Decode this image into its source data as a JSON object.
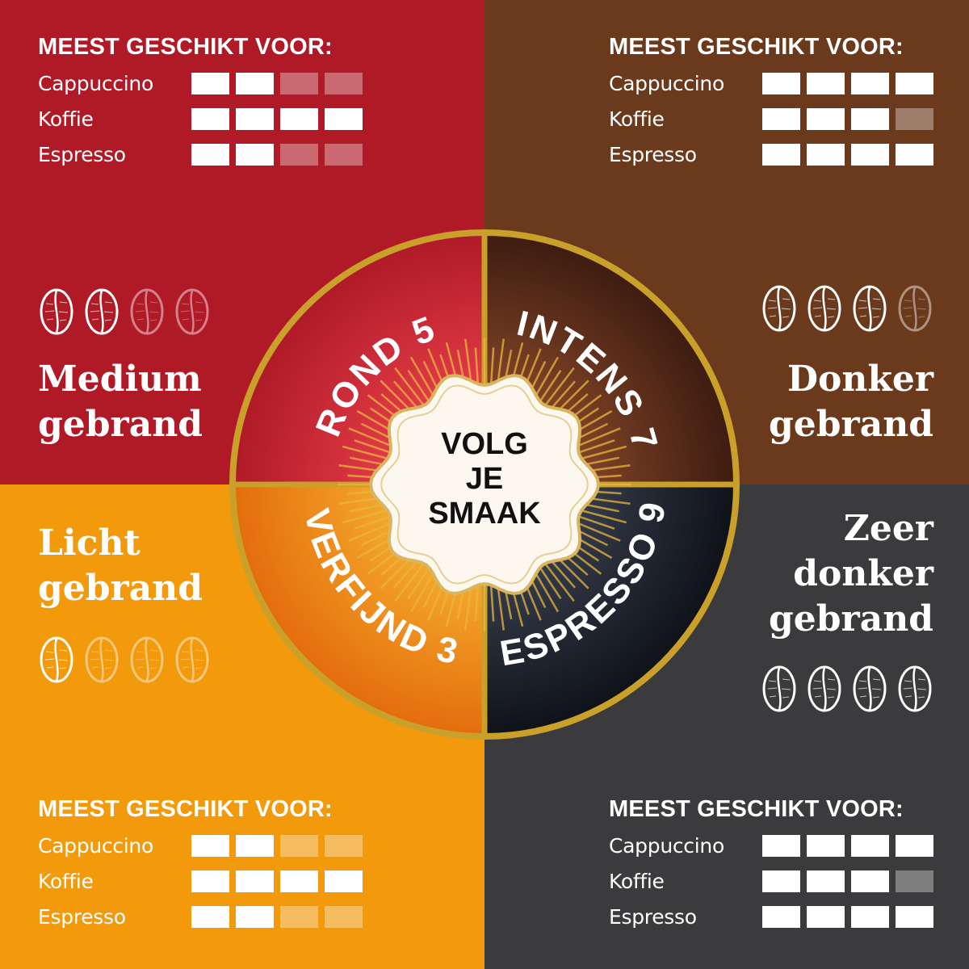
{
  "quadrants": [
    {
      "id": "tl",
      "roast": [
        "Medium",
        "gebrand"
      ],
      "name": "ROND 5",
      "beans": 2,
      "suit_title": "MEEST GESCHIKT VOOR:",
      "suit": [
        {
          "label": "Cappuccino",
          "rating": 2
        },
        {
          "label": "Koffie",
          "rating": 4
        },
        {
          "label": "Espresso",
          "rating": 2
        }
      ]
    },
    {
      "id": "tr",
      "roast": [
        "Donker",
        "gebrand"
      ],
      "name": "INTENS 7",
      "beans": 3,
      "suit_title": "MEEST GESCHIKT VOOR:",
      "suit": [
        {
          "label": "Cappuccino",
          "rating": 4
        },
        {
          "label": "Koffie",
          "rating": 3
        },
        {
          "label": "Espresso",
          "rating": 4
        }
      ]
    },
    {
      "id": "bl",
      "roast": [
        "Licht",
        "gebrand"
      ],
      "name": "VERFIJND 3",
      "beans": 1,
      "suit_title": "MEEST GESCHIKT VOOR:",
      "suit": [
        {
          "label": "Cappuccino",
          "rating": 2
        },
        {
          "label": "Koffie",
          "rating": 4
        },
        {
          "label": "Espresso",
          "rating": 2
        }
      ]
    },
    {
      "id": "br",
      "roast": [
        "Zeer",
        "donker",
        "gebrand"
      ],
      "name": "ESPRESSO 9",
      "beans": 4,
      "suit_title": "MEEST GESCHIKT VOOR:",
      "suit": [
        {
          "label": "Cappuccino",
          "rating": 4
        },
        {
          "label": "Koffie",
          "rating": 3
        },
        {
          "label": "Espresso",
          "rating": 4
        }
      ]
    }
  ],
  "center": {
    "lines": [
      "VOLG",
      "JE",
      "SMAAK"
    ]
  },
  "scale_max": 4,
  "colors": {
    "red": "#b01a27",
    "brown": "#6b3a1d",
    "orange": "#f29a0c",
    "dark": "#3b3b3d",
    "gold": "#c9a02a"
  }
}
